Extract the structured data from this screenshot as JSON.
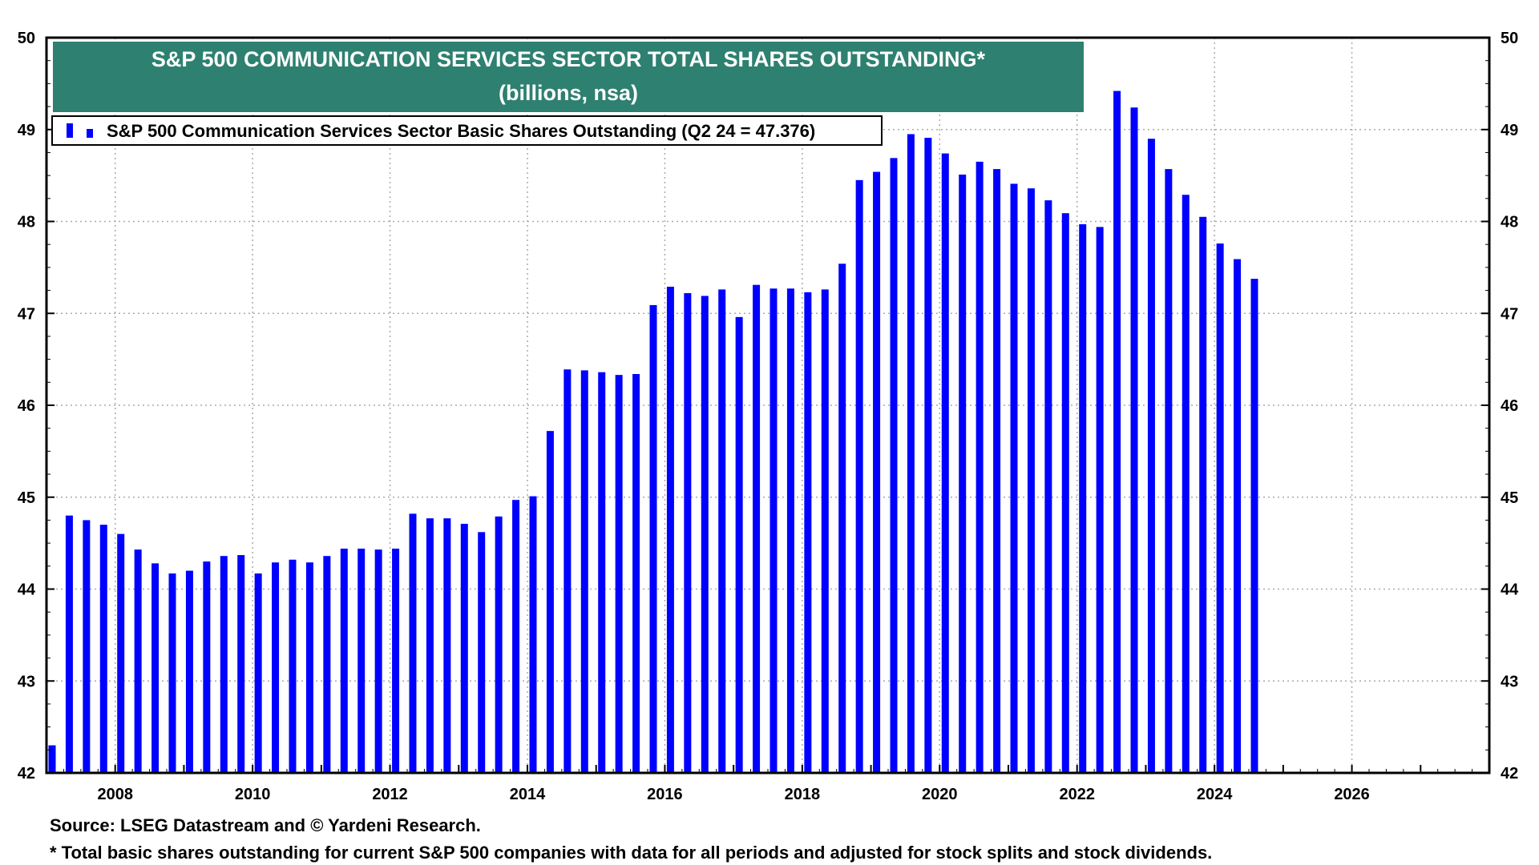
{
  "chart_data": {
    "type": "bar",
    "title": "S&P 500 COMMUNICATION SERVICES SECTOR TOTAL SHARES OUTSTANDING*",
    "subtitle": "(billions, nsa)",
    "legend": "S&P 500 Communication Services Sector Basic Shares Outstanding (Q2 24 = 47.376)",
    "legend_position": "top-left",
    "colors": {
      "bar": "#0000ff",
      "title_bg": "#2e8070",
      "grid": "#aaaaaa"
    },
    "ylim": [
      42,
      50
    ],
    "y_ticks": [
      42,
      43,
      44,
      45,
      46,
      47,
      48,
      49,
      50
    ],
    "y_tick_labels": [
      "42",
      "43",
      "44",
      "45",
      "46",
      "47",
      "48",
      "49",
      "50"
    ],
    "x_range": [
      2007.0,
      2028.0
    ],
    "x_ticks": [
      2008,
      2010,
      2012,
      2014,
      2016,
      2018,
      2020,
      2022,
      2024,
      2026
    ],
    "x_tick_labels": [
      "2008",
      "2010",
      "2012",
      "2014",
      "2016",
      "2018",
      "2020",
      "2022",
      "2024",
      "2026"
    ],
    "x": [
      2007.0,
      2007.25,
      2007.5,
      2007.75,
      2008.0,
      2008.25,
      2008.5,
      2008.75,
      2009.0,
      2009.25,
      2009.5,
      2009.75,
      2010.0,
      2010.25,
      2010.5,
      2010.75,
      2011.0,
      2011.25,
      2011.5,
      2011.75,
      2012.0,
      2012.25,
      2012.5,
      2012.75,
      2013.0,
      2013.25,
      2013.5,
      2013.75,
      2014.0,
      2014.25,
      2014.5,
      2014.75,
      2015.0,
      2015.25,
      2015.5,
      2015.75,
      2016.0,
      2016.25,
      2016.5,
      2016.75,
      2017.0,
      2017.25,
      2017.5,
      2017.75,
      2018.0,
      2018.25,
      2018.5,
      2018.75,
      2019.0,
      2019.25,
      2019.5,
      2019.75,
      2020.0,
      2020.25,
      2020.5,
      2020.75,
      2021.0,
      2021.25,
      2021.5,
      2021.75,
      2022.0,
      2022.25,
      2022.5,
      2022.75,
      2023.0,
      2023.25,
      2023.5,
      2023.75,
      2024.0,
      2024.25,
      2024.5
    ],
    "values": [
      42.3,
      44.8,
      44.75,
      44.7,
      44.6,
      44.43,
      44.28,
      44.17,
      44.2,
      44.3,
      44.36,
      44.37,
      44.17,
      44.29,
      44.32,
      44.29,
      44.36,
      44.44,
      44.44,
      44.43,
      44.44,
      44.82,
      44.77,
      44.77,
      44.71,
      44.62,
      44.79,
      44.97,
      45.01,
      45.72,
      46.39,
      46.38,
      46.36,
      46.33,
      46.34,
      47.09,
      47.29,
      47.22,
      47.19,
      47.26,
      46.96,
      47.31,
      47.27,
      47.27,
      47.23,
      47.26,
      47.54,
      48.45,
      48.54,
      48.69,
      48.95,
      48.91,
      48.74,
      48.51,
      48.65,
      48.57,
      48.41,
      48.36,
      48.23,
      48.09,
      47.97,
      47.94,
      49.42,
      49.24,
      48.9,
      48.57,
      48.29,
      48.05,
      47.76,
      47.59,
      47.376
    ],
    "source": "Source: LSEG Datastream and © Yardeni Research.",
    "footnote": "* Total basic shares outstanding for current S&P 500 companies with data for all periods and adjusted for stock splits and stock dividends."
  }
}
